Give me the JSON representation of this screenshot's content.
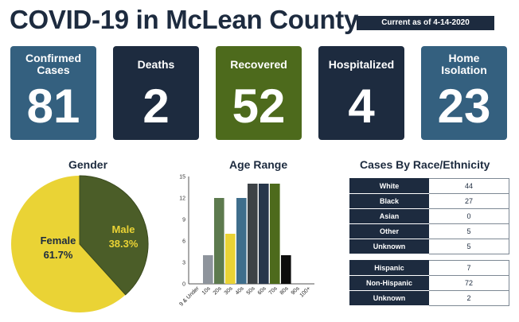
{
  "header": {
    "title": "COVID-19 in McLean County",
    "as_of": "Current as of 4-14-2020"
  },
  "cards": [
    {
      "label": "Confirmed Cases",
      "value": "81",
      "color": "#34607f"
    },
    {
      "label": "Deaths",
      "value": "2",
      "color": "#1d2b3f"
    },
    {
      "label": "Recovered",
      "value": "52",
      "color": "#4d6a1c"
    },
    {
      "label": "Hospitalized",
      "value": "4",
      "color": "#1d2b3f"
    },
    {
      "label": "Home Isolation",
      "value": "23",
      "color": "#34607f"
    }
  ],
  "gender": {
    "title": "Gender",
    "female_label": "Female",
    "female_pct": "61.7%",
    "male_label": "Male",
    "male_pct": "38.3%"
  },
  "age": {
    "title": "Age Range"
  },
  "race": {
    "title": "Cases By Race/Ethnicity",
    "rows": [
      {
        "label": "White",
        "value": "44"
      },
      {
        "label": "Black",
        "value": "27"
      },
      {
        "label": "Asian",
        "value": "0"
      },
      {
        "label": "Other",
        "value": "5"
      },
      {
        "label": "Unknown",
        "value": "5"
      }
    ],
    "rows2": [
      {
        "label": "Hispanic",
        "value": "7"
      },
      {
        "label": "Non-Hispanic",
        "value": "72"
      },
      {
        "label": "Unknown",
        "value": "2"
      }
    ]
  },
  "chart_data": [
    {
      "type": "pie",
      "title": "Gender",
      "labels": [
        "Female",
        "Male"
      ],
      "values": [
        61.7,
        38.3
      ],
      "colors": [
        "#ead335",
        "#4b5d28"
      ]
    },
    {
      "type": "bar",
      "title": "Age Range",
      "categories": [
        "9 & Under",
        "10s",
        "20s",
        "30s",
        "40s",
        "50s",
        "60s",
        "70s",
        "80s",
        "90s",
        "100+"
      ],
      "values": [
        0,
        4,
        12,
        7,
        12,
        14,
        14,
        14,
        4,
        0,
        0
      ],
      "colors": [
        "#9aa0a6",
        "#8e949c",
        "#5d7a4e",
        "#ead335",
        "#3f6e8c",
        "#3d4246",
        "#27364b",
        "#4d6a1c",
        "#0d0d0d",
        "#cccccc",
        "#cccccc"
      ],
      "yticks": [
        "0",
        "3",
        "6",
        "9",
        "12",
        "15"
      ],
      "ylim": [
        0,
        15
      ],
      "grid": false
    },
    {
      "type": "table",
      "title": "Cases By Race/Ethnicity",
      "rows": [
        [
          "White",
          44
        ],
        [
          "Black",
          27
        ],
        [
          "Asian",
          0
        ],
        [
          "Other",
          5
        ],
        [
          "Unknown",
          5
        ],
        [
          "Hispanic",
          7
        ],
        [
          "Non-Hispanic",
          72
        ],
        [
          "Unknown",
          2
        ]
      ]
    }
  ]
}
